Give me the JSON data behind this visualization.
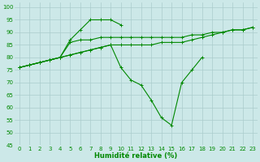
{
  "background_color": "#cce8e8",
  "grid_color": "#aacccc",
  "line_color": "#008800",
  "xlabel": "Humidité relative (%)",
  "xlabel_color": "#008800",
  "ylim": [
    45,
    102
  ],
  "xlim": [
    -0.5,
    23.5
  ],
  "yticks": [
    45,
    50,
    55,
    60,
    65,
    70,
    75,
    80,
    85,
    90,
    95,
    100
  ],
  "xticks": [
    0,
    1,
    2,
    3,
    4,
    5,
    6,
    7,
    8,
    9,
    10,
    11,
    12,
    13,
    14,
    15,
    16,
    17,
    18,
    19,
    20,
    21,
    22,
    23
  ],
  "series": [
    [
      76,
      77,
      78,
      79,
      80,
      86,
      87,
      87,
      88,
      88,
      88,
      88,
      88,
      88,
      88,
      88,
      88,
      89,
      89,
      90,
      90,
      91,
      91,
      92
    ],
    [
      76,
      77,
      78,
      79,
      80,
      81,
      82,
      83,
      84,
      85,
      85,
      85,
      85,
      85,
      86,
      86,
      86,
      87,
      88,
      89,
      90,
      91,
      91,
      92
    ],
    [
      76,
      77,
      78,
      79,
      80,
      87,
      91,
      95,
      95,
      95,
      93,
      null,
      null,
      null,
      null,
      null,
      null,
      null,
      null,
      null,
      null,
      null,
      null,
      null
    ],
    [
      76,
      77,
      78,
      79,
      80,
      81,
      82,
      83,
      84,
      85,
      76,
      71,
      69,
      63,
      56,
      53,
      70,
      75,
      80,
      null,
      null,
      null,
      null,
      null
    ]
  ]
}
